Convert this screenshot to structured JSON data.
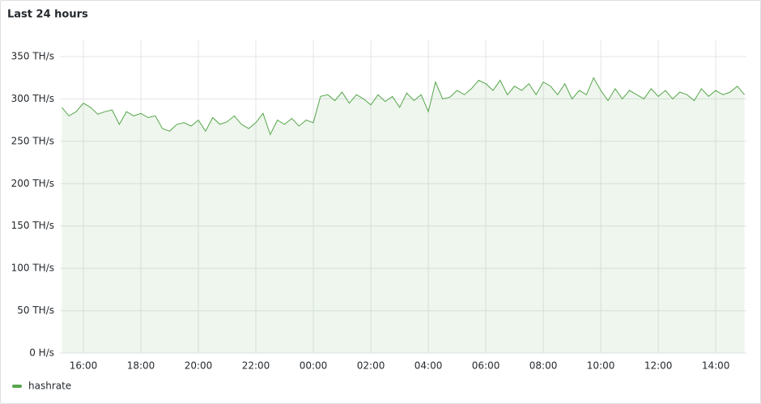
{
  "chart_data": {
    "type": "line",
    "title": "Last 24 hours",
    "x": [
      "15:15",
      "15:30",
      "15:45",
      "16:00",
      "16:15",
      "16:30",
      "16:45",
      "17:00",
      "17:15",
      "17:30",
      "17:45",
      "18:00",
      "18:15",
      "18:30",
      "18:45",
      "19:00",
      "19:15",
      "19:30",
      "19:45",
      "20:00",
      "20:15",
      "20:30",
      "20:45",
      "21:00",
      "21:15",
      "21:30",
      "21:45",
      "22:00",
      "22:15",
      "22:30",
      "22:45",
      "23:00",
      "23:15",
      "23:30",
      "23:45",
      "00:00",
      "00:15",
      "00:30",
      "00:45",
      "01:00",
      "01:15",
      "01:30",
      "01:45",
      "02:00",
      "02:15",
      "02:30",
      "02:45",
      "03:00",
      "03:15",
      "03:30",
      "03:45",
      "04:00",
      "04:15",
      "04:30",
      "04:45",
      "05:00",
      "05:15",
      "05:30",
      "05:45",
      "06:00",
      "06:15",
      "06:30",
      "06:45",
      "07:00",
      "07:15",
      "07:30",
      "07:45",
      "08:00",
      "08:15",
      "08:30",
      "08:45",
      "09:00",
      "09:15",
      "09:30",
      "09:45",
      "10:00",
      "10:15",
      "10:30",
      "10:45",
      "11:00",
      "11:15",
      "11:30",
      "11:45",
      "12:00",
      "12:15",
      "12:30",
      "12:45",
      "13:00",
      "13:15",
      "13:30",
      "13:45",
      "14:00",
      "14:15",
      "14:30",
      "14:45",
      "15:00"
    ],
    "series": [
      {
        "name": "hashrate",
        "color": "#56a64b",
        "values": [
          290,
          280,
          285,
          295,
          290,
          282,
          285,
          287,
          270,
          285,
          280,
          283,
          278,
          280,
          265,
          262,
          270,
          272,
          268,
          275,
          262,
          278,
          270,
          273,
          280,
          270,
          265,
          272,
          283,
          258,
          275,
          270,
          277,
          268,
          275,
          272,
          303,
          305,
          298,
          308,
          295,
          305,
          300,
          293,
          305,
          297,
          303,
          290,
          307,
          298,
          305,
          285,
          320,
          300,
          302,
          310,
          305,
          312,
          322,
          318,
          310,
          322,
          305,
          315,
          310,
          318,
          305,
          320,
          315,
          305,
          318,
          300,
          310,
          305,
          325,
          310,
          298,
          312,
          300,
          310,
          305,
          300,
          312,
          303,
          310,
          300,
          308,
          305,
          298,
          312,
          303,
          310,
          305,
          308,
          315,
          305
        ]
      }
    ],
    "xlim": [
      "15:11",
      "15:04"
    ],
    "xticks": [
      "16:00",
      "18:00",
      "20:00",
      "22:00",
      "00:00",
      "02:00",
      "04:00",
      "06:00",
      "08:00",
      "10:00",
      "12:00",
      "14:00"
    ],
    "ylim": [
      0,
      350
    ],
    "yticks": [
      {
        "value": 0,
        "label": "0 H/s"
      },
      {
        "value": 50,
        "label": "50 TH/s"
      },
      {
        "value": 100,
        "label": "100 TH/s"
      },
      {
        "value": 150,
        "label": "150 TH/s"
      },
      {
        "value": 200,
        "label": "200 TH/s"
      },
      {
        "value": 250,
        "label": "250 TH/s"
      },
      {
        "value": 300,
        "label": "300 TH/s"
      },
      {
        "value": 350,
        "label": "350 TH/s"
      }
    ],
    "grid": true
  }
}
